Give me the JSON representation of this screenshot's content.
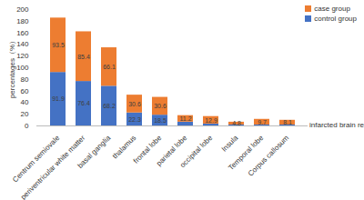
{
  "chart_data": {
    "type": "bar",
    "stacked": true,
    "data_labels": true,
    "legend": "top-right",
    "ylabel": "percentages（%）",
    "xlabel": "infarcted brain region",
    "categories": [
      "Centrum semiovale",
      "periventricular white matter",
      "basal ganglia",
      "thalamus",
      "frontal lobe",
      "parietal lobe",
      "occipital lobe",
      "Insula",
      "Temporal lobe",
      "Corpus callosum"
    ],
    "series": [
      {
        "name": "control group",
        "color": "#4472C4",
        "values": [
          91.9,
          76.4,
          68.2,
          22.3,
          18.5,
          6.5,
          3.2,
          1.6,
          1.6,
          1.6
        ],
        "value_labels": [
          "91.9",
          "76.4",
          "68.2",
          "22.3",
          "18.5",
          null,
          null,
          null,
          null,
          null
        ]
      },
      {
        "name": "case group",
        "color": "#ED7D31",
        "values": [
          93.5,
          85.4,
          66.1,
          30.6,
          30.6,
          11.2,
          12.9,
          4.8,
          9.7,
          8.1
        ]
      }
    ],
    "ylim": [
      0,
      200
    ],
    "yticks": [
      0,
      20,
      40,
      60,
      80,
      100,
      120,
      140,
      160,
      180,
      200
    ]
  }
}
